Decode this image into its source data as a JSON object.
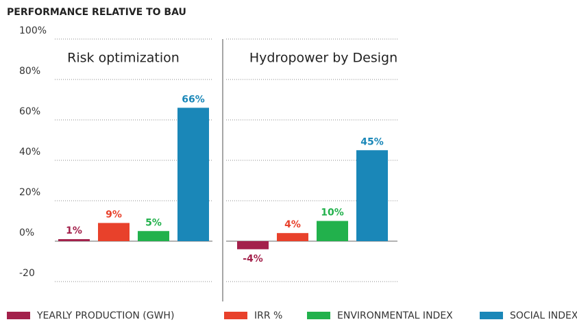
{
  "chart_data": {
    "type": "bar",
    "title": "PERFORMANCE RELATIVE TO BAU",
    "categories": [
      "Risk optimization",
      "Hydropower by Design"
    ],
    "series": [
      {
        "name": "YEARLY PRODUCTION (GWH)",
        "color": "#a3214b",
        "values": [
          1,
          -4
        ],
        "value_labels": [
          "1%",
          "-4%"
        ]
      },
      {
        "name": "IRR %",
        "color": "#e8412b",
        "values": [
          9,
          4
        ],
        "value_labels": [
          "9%",
          "4%"
        ]
      },
      {
        "name": "ENVIRONMENTAL INDEX",
        "color": "#22b14c",
        "values": [
          5,
          10
        ],
        "value_labels": [
          "5%",
          "10%"
        ]
      },
      {
        "name": "SOCIAL INDEX",
        "color": "#1a87b8",
        "values": [
          66,
          45
        ],
        "value_labels": [
          "66%",
          "45%"
        ]
      }
    ],
    "ylim": [
      -20,
      100
    ],
    "yticks": [
      {
        "value": 100,
        "label": "100%"
      },
      {
        "value": 80,
        "label": "80%"
      },
      {
        "value": 60,
        "label": "60%"
      },
      {
        "value": 40,
        "label": "40%"
      },
      {
        "value": 20,
        "label": "20%"
      },
      {
        "value": 0,
        "label": "0%"
      },
      -20
    ],
    "grid": true
  }
}
